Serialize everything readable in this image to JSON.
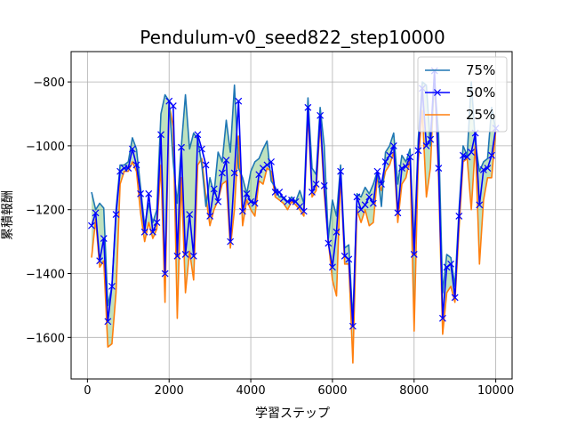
{
  "chart_data": {
    "type": "line",
    "title": "Pendulum-v0_seed822_step10000",
    "xlabel": "学習ステップ",
    "ylabel": "累積報酬",
    "xlim": [
      -400,
      10400
    ],
    "ylim": [
      -1730,
      -705
    ],
    "xticks": [
      0,
      2000,
      4000,
      6000,
      8000,
      10000
    ],
    "yticks": [
      -1600,
      -1400,
      -1200,
      -1000,
      -800
    ],
    "grid": true,
    "legend_position": "upper-right",
    "fill_between": {
      "upper": "75%",
      "lower": "25%",
      "color": "#2ca02c",
      "alpha": 0.3
    },
    "x": [
      100,
      200,
      300,
      400,
      500,
      600,
      700,
      800,
      900,
      1000,
      1100,
      1200,
      1300,
      1400,
      1500,
      1600,
      1700,
      1800,
      1900,
      2000,
      2100,
      2200,
      2300,
      2400,
      2500,
      2600,
      2700,
      2800,
      2900,
      3000,
      3100,
      3200,
      3300,
      3400,
      3500,
      3600,
      3700,
      3800,
      3900,
      4000,
      4100,
      4200,
      4300,
      4400,
      4500,
      4600,
      4700,
      4800,
      4900,
      5000,
      5100,
      5200,
      5300,
      5400,
      5500,
      5600,
      5700,
      5800,
      5900,
      6000,
      6100,
      6200,
      6300,
      6400,
      6500,
      6600,
      6700,
      6800,
      6900,
      7000,
      7100,
      7200,
      7300,
      7400,
      7500,
      7600,
      7700,
      7800,
      7900,
      8000,
      8100,
      8200,
      8300,
      8400,
      8500,
      8600,
      8700,
      8800,
      8900,
      9000,
      9100,
      9200,
      9300,
      9400,
      9500,
      9600,
      9700,
      9800,
      9900,
      10000
    ],
    "series": [
      {
        "name": "75%",
        "color": "#1f77b4",
        "marker": "none",
        "values": [
          -1145,
          -1200,
          -1180,
          -1195,
          -1500,
          -1440,
          -1200,
          -1060,
          -1060,
          -1050,
          -975,
          -1010,
          -1130,
          -1250,
          -1180,
          -1240,
          -1200,
          -900,
          -840,
          -860,
          -1050,
          -1180,
          -1000,
          -840,
          -1010,
          -960,
          -980,
          -1060,
          -1190,
          -1100,
          -1150,
          -1020,
          -1050,
          -920,
          -1020,
          -810,
          -1070,
          -1100,
          -1150,
          -1080,
          -1050,
          -1040,
          -1010,
          -985,
          -1110,
          -1130,
          -1160,
          -1160,
          -1175,
          -1160,
          -1175,
          -1140,
          -1180,
          -850,
          -1070,
          -1090,
          -880,
          -1000,
          -1290,
          -1170,
          -1220,
          -1060,
          -1320,
          -1310,
          -1550,
          -1150,
          -1160,
          -1130,
          -1150,
          -1120,
          -1080,
          -1190,
          -1020,
          -1000,
          -960,
          -1120,
          -1030,
          -1050,
          -1010,
          -1320,
          -980,
          -800,
          -810,
          -1000,
          -800,
          -960,
          -1460,
          -1340,
          -1350,
          -1440,
          -1200,
          -1000,
          -1030,
          -800,
          -990,
          -1080,
          -1050,
          -1040,
          -880,
          -950
        ]
      },
      {
        "name": "50%",
        "color": "#0000ff",
        "marker": "x",
        "values": [
          -1250,
          -1210,
          -1360,
          -1290,
          -1550,
          -1440,
          -1215,
          -1080,
          -1070,
          -1070,
          -1010,
          -1060,
          -1150,
          -1270,
          -1150,
          -1270,
          -1240,
          -965,
          -1400,
          -860,
          -875,
          -1345,
          -1005,
          -1340,
          -1215,
          -1345,
          -965,
          -1010,
          -1060,
          -1220,
          -1135,
          -1175,
          -1085,
          -1045,
          -1300,
          -1085,
          -860,
          -1205,
          -1150,
          -1175,
          -1180,
          -1090,
          -1070,
          -1060,
          -1050,
          -1145,
          -1145,
          -1165,
          -1175,
          -1170,
          -1175,
          -1190,
          -1205,
          -880,
          -1145,
          -1120,
          -905,
          -1125,
          -1305,
          -1380,
          -1270,
          -1080,
          -1345,
          -1355,
          -1565,
          -1160,
          -1200,
          -1185,
          -1160,
          -1180,
          -1080,
          -1120,
          -1050,
          -1030,
          -1000,
          -1210,
          -1070,
          -1065,
          -1035,
          -1340,
          -1015,
          -820,
          -1000,
          -980,
          -765,
          -1070,
          -1540,
          -1380,
          -1370,
          -1475,
          -1220,
          -1030,
          -1035,
          -1020,
          -960,
          -1185,
          -1075,
          -1070,
          -1030,
          -945
        ]
      },
      {
        "name": "25%",
        "color": "#ff7f0e",
        "marker": "none",
        "values": [
          -1350,
          -1230,
          -1380,
          -1360,
          -1630,
          -1620,
          -1460,
          -1120,
          -1080,
          -1080,
          -1050,
          -1080,
          -1210,
          -1300,
          -1240,
          -1290,
          -1260,
          -1060,
          -1490,
          -870,
          -940,
          -1540,
          -1100,
          -1460,
          -1330,
          -1420,
          -1060,
          -1040,
          -1160,
          -1250,
          -1200,
          -1170,
          -1120,
          -1110,
          -1320,
          -1200,
          -970,
          -1250,
          -1170,
          -1200,
          -1220,
          -1110,
          -1120,
          -1070,
          -1080,
          -1160,
          -1170,
          -1180,
          -1200,
          -1175,
          -1185,
          -1200,
          -1220,
          -900,
          -1160,
          -1140,
          -930,
          -1150,
          -1300,
          -1420,
          -1470,
          -1090,
          -1370,
          -1370,
          -1680,
          -1200,
          -1240,
          -1200,
          -1250,
          -1240,
          -1100,
          -1140,
          -1080,
          -1060,
          -1020,
          -1240,
          -1120,
          -1100,
          -1040,
          -1580,
          -1050,
          -890,
          -1160,
          -1070,
          -780,
          -1100,
          -1590,
          -1460,
          -1440,
          -1490,
          -1260,
          -1050,
          -1040,
          -1200,
          -990,
          -1370,
          -1170,
          -1100,
          -1100,
          -950
        ]
      }
    ]
  }
}
